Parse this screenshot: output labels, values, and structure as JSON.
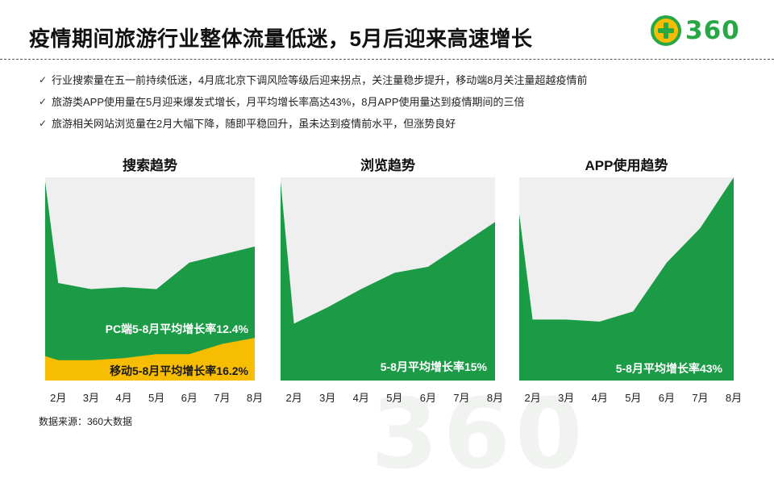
{
  "title": "疫情期间旅游行业整体流量低迷，5月后迎来高速增长",
  "logo": {
    "brand": "360",
    "icon": "360-logo-icon",
    "color": "#27a844"
  },
  "bullets": [
    "行业搜索量在五一前持续低迷，4月底北京下调风险等级后迎来拐点，关注量稳步提升，移动端8月关注量超越疫情前",
    "旅游类APP使用量在5月迎来爆发式增长，月平均增长率高达43%，8月APP使用量达到疫情期间的三倍",
    "旅游相关网站浏览量在2月大幅下降，随即平稳回升，虽未达到疫情前水平，但涨势良好"
  ],
  "footer": "数据来源：360大数据",
  "watermark": "360",
  "colors": {
    "green": "#1b9b45",
    "yellow": "#f7bd03",
    "background": "#efefef"
  },
  "chart_data": [
    {
      "type": "area",
      "title": "搜索趋势",
      "categories": [
        "2月",
        "3月",
        "4月",
        "5月",
        "6月",
        "7月",
        "8月"
      ],
      "x": [
        1.6,
        2,
        3,
        4,
        5,
        6,
        7,
        8
      ],
      "ylim": [
        0,
        100
      ],
      "series": [
        {
          "name": "PC端",
          "values": [
            98,
            48,
            45,
            46,
            45,
            58,
            62,
            66
          ]
        },
        {
          "name": "移动",
          "values": [
            12,
            10,
            10,
            11,
            13,
            13,
            18,
            21
          ]
        }
      ],
      "annotations": [
        "PC端5-8月平均增长率12.4%",
        "移动5-8月平均增长率16.2%"
      ]
    },
    {
      "type": "area",
      "title": "浏览趋势",
      "categories": [
        "2月",
        "3月",
        "4月",
        "5月",
        "6月",
        "7月",
        "8月"
      ],
      "x": [
        1.6,
        2,
        3,
        4,
        5,
        6,
        7,
        8
      ],
      "ylim": [
        0,
        100
      ],
      "series": [
        {
          "name": "浏览量",
          "values": [
            98,
            28,
            36,
            45,
            53,
            56,
            67,
            78
          ]
        }
      ],
      "annotations": [
        "5-8月平均增长率15%"
      ]
    },
    {
      "type": "area",
      "title": "APP使用趋势",
      "categories": [
        "2月",
        "3月",
        "4月",
        "5月",
        "6月",
        "7月",
        "8月"
      ],
      "x": [
        1.6,
        2,
        3,
        4,
        5,
        6,
        7,
        8
      ],
      "ylim": [
        0,
        100
      ],
      "series": [
        {
          "name": "APP使用量",
          "values": [
            82,
            30,
            30,
            29,
            34,
            58,
            75,
            100
          ]
        }
      ],
      "annotations": [
        "5-8月平均增长率43%"
      ]
    }
  ]
}
